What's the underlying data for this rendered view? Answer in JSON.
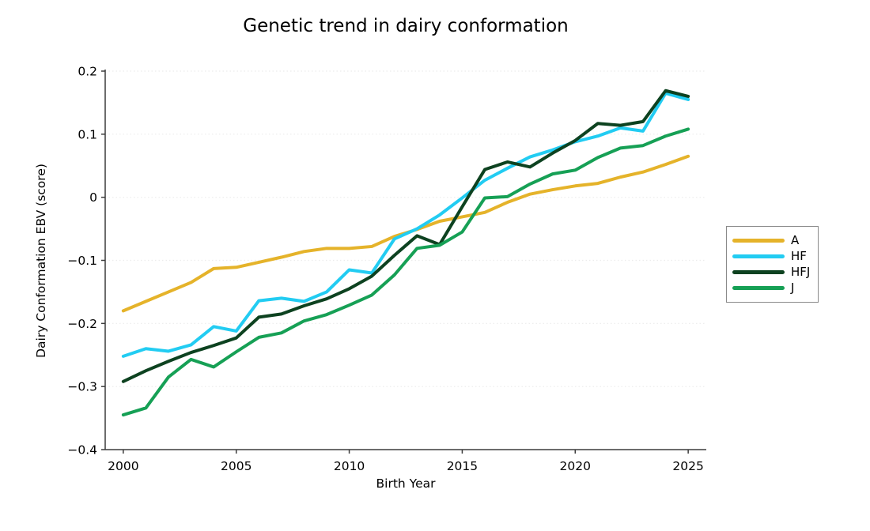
{
  "figure": {
    "title": "Genetic trend in dairy conformation",
    "xlabel": "Birth Year",
    "ylabel": "Dairy Conformation EBV (score)",
    "background_color": "#ffffff",
    "spine_color": "#3c3c3c",
    "grid_color": "#ececec",
    "text_color": "#000000"
  },
  "legend": {
    "border_color": "#8a8a8a",
    "entries": [
      "A",
      "HF",
      "HFJ",
      "J"
    ]
  },
  "chart_data": {
    "type": "line",
    "title": "Genetic trend in dairy conformation",
    "xlabel": "Birth Year",
    "ylabel": "Dairy Conformation EBV (score)",
    "xlim": [
      1999.2,
      2025.8
    ],
    "ylim": [
      -0.4,
      0.2
    ],
    "xticks": [
      2000,
      2005,
      2010,
      2015,
      2020,
      2025
    ],
    "yticks": [
      0.2,
      0.1,
      0.0,
      -0.1,
      -0.2,
      -0.3,
      -0.4
    ],
    "grid": "horizontal-dotted-faint",
    "legend_position": "right-outside",
    "line_width": 4,
    "x": [
      2000,
      2001,
      2002,
      2003,
      2004,
      2005,
      2006,
      2007,
      2008,
      2009,
      2010,
      2011,
      2012,
      2013,
      2014,
      2015,
      2016,
      2017,
      2018,
      2019,
      2020,
      2021,
      2022,
      2023,
      2024,
      2025
    ],
    "series": [
      {
        "name": "A",
        "color": "#e5b32a",
        "values": [
          -0.18,
          -0.165,
          -0.15,
          -0.135,
          -0.113,
          -0.111,
          -0.103,
          -0.095,
          -0.086,
          -0.081,
          -0.081,
          -0.078,
          -0.062,
          -0.051,
          -0.038,
          -0.031,
          -0.024,
          -0.008,
          0.005,
          0.012,
          0.018,
          0.022,
          0.032,
          0.04,
          0.052,
          0.065
        ]
      },
      {
        "name": "HF",
        "color": "#22ccf2",
        "values": [
          -0.252,
          -0.24,
          -0.244,
          -0.234,
          -0.205,
          -0.212,
          -0.164,
          -0.16,
          -0.165,
          -0.15,
          -0.115,
          -0.12,
          -0.066,
          -0.05,
          -0.028,
          -0.001,
          0.027,
          0.046,
          0.064,
          0.075,
          0.088,
          0.097,
          0.11,
          0.105,
          0.165,
          0.155
        ]
      },
      {
        "name": "HFJ",
        "color": "#0d4220",
        "values": [
          -0.292,
          -0.275,
          -0.26,
          -0.246,
          -0.235,
          -0.223,
          -0.19,
          -0.185,
          -0.172,
          -0.161,
          -0.145,
          -0.125,
          -0.092,
          -0.061,
          -0.075,
          -0.015,
          0.044,
          0.056,
          0.048,
          0.07,
          0.09,
          0.117,
          0.114,
          0.12,
          0.169,
          0.16
        ]
      },
      {
        "name": "J",
        "color": "#16a055",
        "values": [
          -0.345,
          -0.334,
          -0.285,
          -0.257,
          -0.269,
          -0.245,
          -0.222,
          -0.215,
          -0.196,
          -0.186,
          -0.171,
          -0.155,
          -0.123,
          -0.081,
          -0.076,
          -0.055,
          -0.001,
          0.001,
          0.021,
          0.037,
          0.043,
          0.063,
          0.078,
          0.082,
          0.097,
          0.108
        ]
      }
    ]
  }
}
